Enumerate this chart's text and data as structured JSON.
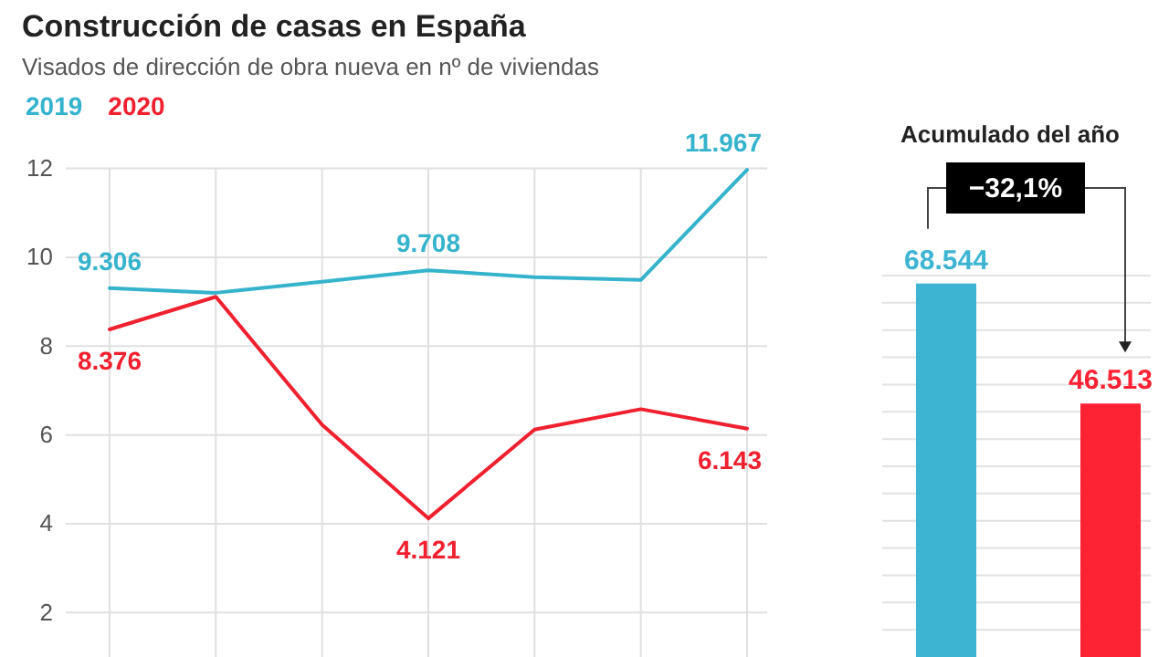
{
  "chart_data": [
    {
      "type": "line",
      "title": "Construcción de casas en España",
      "subtitle": "Visados de dirección de obra nueva en nº de viviendas",
      "categories": [
        null,
        null,
        null,
        null,
        null,
        null,
        null
      ],
      "series": [
        {
          "name": "2019",
          "color": "#35b3cc",
          "values": [
            9.306,
            9.2,
            9.45,
            9.708,
            9.55,
            9.49,
            11.967
          ],
          "value_labels": [
            "9.306",
            null,
            null,
            "9.708",
            null,
            null,
            "11.967"
          ]
        },
        {
          "name": "2020",
          "color": "#f0202f",
          "values": [
            8.376,
            9.11,
            6.23,
            4.121,
            6.12,
            6.58,
            6.143
          ],
          "value_labels": [
            "8.376",
            null,
            null,
            "4.121",
            null,
            null,
            "6.143"
          ]
        }
      ],
      "ylim": [
        1,
        12
      ],
      "yticks": [
        2,
        4,
        6,
        8,
        10,
        12
      ],
      "grid": true,
      "legend": "top left",
      "tick_labels": "y"
    },
    {
      "type": "bar",
      "title": "Acumulado del año",
      "categories": [
        null,
        null
      ],
      "values": [
        68.544,
        46.513
      ],
      "colors": [
        "#3db4d2",
        "#fd2234"
      ],
      "value_labels": [
        "68.544",
        "46.513"
      ],
      "ylim": [
        0,
        70
      ],
      "yticks": [
        {
          "value": 5,
          "label": null
        },
        {
          "value": 10,
          "label": null
        },
        {
          "value": 15,
          "label": null
        },
        {
          "value": 20,
          "label": null
        },
        {
          "value": 25,
          "label": null
        },
        {
          "value": 30,
          "label": null
        },
        {
          "value": 35,
          "label": null
        },
        {
          "value": 40,
          "label": null
        },
        {
          "value": 45,
          "label": null
        },
        {
          "value": 50,
          "label": null
        },
        {
          "value": 55,
          "label": null
        },
        {
          "value": 60,
          "label": null
        },
        {
          "value": 65,
          "label": null
        },
        {
          "value": 70,
          "label": null
        }
      ],
      "grid": "y",
      "tick_labels": false,
      "annotations": [
        "−32,1%"
      ]
    }
  ]
}
